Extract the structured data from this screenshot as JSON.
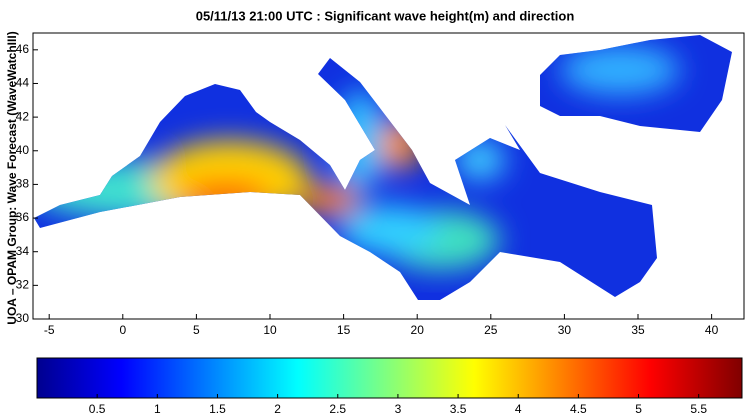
{
  "title": "05/11/13 21:00 UTC : Significant wave height(m) and direction",
  "y_label": "UOA – OPAM Group: Wave Forecast  (WaveWatchIII)",
  "map": {
    "xlim": [
      -6.1,
      42.2
    ],
    "ylim": [
      30,
      47
    ],
    "xticks": [
      -5,
      0,
      5,
      10,
      15,
      20,
      25,
      30,
      35,
      40
    ],
    "yticks": [
      30,
      32,
      34,
      36,
      38,
      40,
      42,
      44,
      46
    ]
  },
  "colorbar": {
    "lim": [
      0,
      5.86
    ],
    "ticks": [
      0.5,
      1,
      1.5,
      2,
      2.5,
      3,
      3.5,
      4,
      4.5,
      5,
      5.5
    ]
  }
}
